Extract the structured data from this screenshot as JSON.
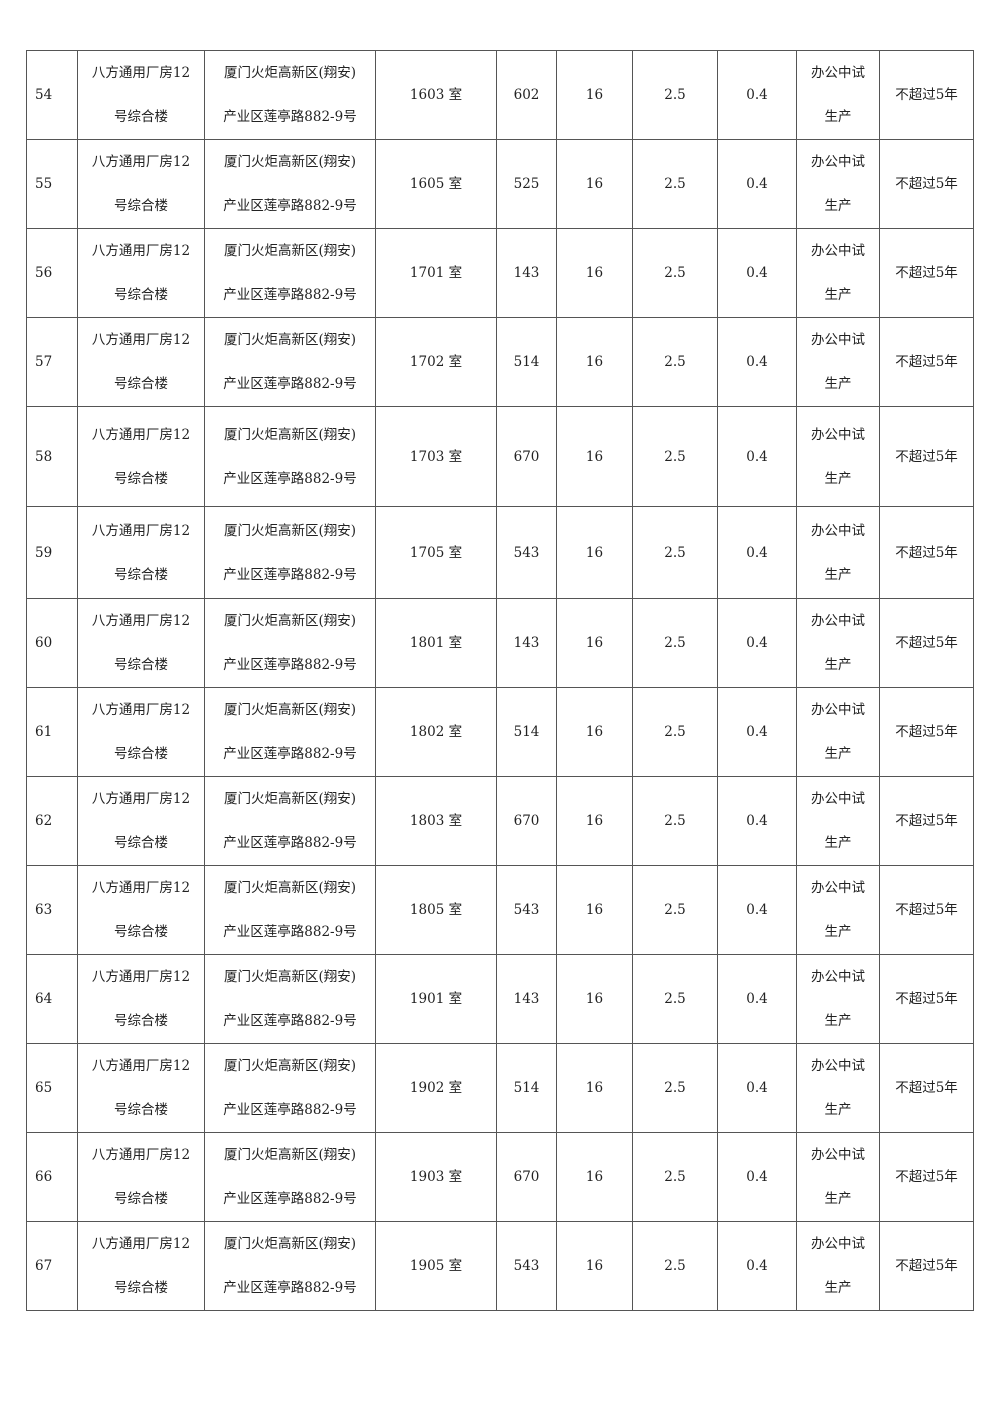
{
  "rows": [
    {
      "no": "54",
      "building": [
        "八方通用厂房12",
        "号综合楼"
      ],
      "address": [
        "厦门火炬高新区(翔安)",
        "产业区莲亭路882-9号"
      ],
      "room": "1603 室",
      "area": "602",
      "c6": "16",
      "c7": "2.5",
      "c8": "0.4",
      "use": [
        "办公中试",
        "生产"
      ],
      "term": "不超过5年"
    },
    {
      "no": "55",
      "building": [
        "八方通用厂房12",
        "号综合楼"
      ],
      "address": [
        "厦门火炬高新区(翔安)",
        "产业区莲亭路882-9号"
      ],
      "room": "1605 室",
      "area": "525",
      "c6": "16",
      "c7": "2.5",
      "c8": "0.4",
      "use": [
        "办公中试",
        "生产"
      ],
      "term": "不超过5年"
    },
    {
      "no": "56",
      "building": [
        "八方通用厂房12",
        "号综合楼"
      ],
      "address": [
        "厦门火炬高新区(翔安)",
        "产业区莲亭路882-9号"
      ],
      "room": "1701 室",
      "area": "143",
      "c6": "16",
      "c7": "2.5",
      "c8": "0.4",
      "use": [
        "办公中试",
        "生产"
      ],
      "term": "不超过5年"
    },
    {
      "no": "57",
      "building": [
        "八方通用厂房12",
        "号综合楼"
      ],
      "address": [
        "厦门火炬高新区(翔安)",
        "产业区莲亭路882-9号"
      ],
      "room": "1702 室",
      "area": "514",
      "c6": "16",
      "c7": "2.5",
      "c8": "0.4",
      "use": [
        "办公中试",
        "生产"
      ],
      "term": "不超过5年"
    },
    {
      "no": "58",
      "building": [
        "八方通用厂房12",
        "号综合楼"
      ],
      "address": [
        "厦门火炬高新区(翔安)",
        "产业区莲亭路882-9号"
      ],
      "room": "1703 室",
      "area": "670",
      "c6": "16",
      "c7": "2.5",
      "c8": "0.4",
      "use": [
        "办公中试",
        "生产"
      ],
      "term": "不超过5年"
    },
    {
      "no": "59",
      "building": [
        "八方通用厂房12",
        "号综合楼"
      ],
      "address": [
        "厦门火炬高新区(翔安)",
        "产业区莲亭路882-9号"
      ],
      "room": "1705 室",
      "area": "543",
      "c6": "16",
      "c7": "2.5",
      "c8": "0.4",
      "use": [
        "办公中试",
        "生产"
      ],
      "term": "不超过5年"
    },
    {
      "no": "60",
      "building": [
        "八方通用厂房12",
        "号综合楼"
      ],
      "address": [
        "厦门火炬高新区(翔安)",
        "产业区莲亭路882-9号"
      ],
      "room": "1801 室",
      "area": "143",
      "c6": "16",
      "c7": "2.5",
      "c8": "0.4",
      "use": [
        "办公中试",
        "生产"
      ],
      "term": "不超过5年"
    },
    {
      "no": "61",
      "building": [
        "八方通用厂房12",
        "号综合楼"
      ],
      "address": [
        "厦门火炬高新区(翔安)",
        "产业区莲亭路882-9号"
      ],
      "room": "1802 室",
      "area": "514",
      "c6": "16",
      "c7": "2.5",
      "c8": "0.4",
      "use": [
        "办公中试",
        "生产"
      ],
      "term": "不超过5年"
    },
    {
      "no": "62",
      "building": [
        "八方通用厂房12",
        "号综合楼"
      ],
      "address": [
        "厦门火炬高新区(翔安)",
        "产业区莲亭路882-9号"
      ],
      "room": "1803 室",
      "area": "670",
      "c6": "16",
      "c7": "2.5",
      "c8": "0.4",
      "use": [
        "办公中试",
        "生产"
      ],
      "term": "不超过5年"
    },
    {
      "no": "63",
      "building": [
        "八方通用厂房12",
        "号综合楼"
      ],
      "address": [
        "厦门火炬高新区(翔安)",
        "产业区莲亭路882-9号"
      ],
      "room": "1805 室",
      "area": "543",
      "c6": "16",
      "c7": "2.5",
      "c8": "0.4",
      "use": [
        "办公中试",
        "生产"
      ],
      "term": "不超过5年"
    },
    {
      "no": "64",
      "building": [
        "八方通用厂房12",
        "号综合楼"
      ],
      "address": [
        "厦门火炬高新区(翔安)",
        "产业区莲亭路882-9号"
      ],
      "room": "1901 室",
      "area": "143",
      "c6": "16",
      "c7": "2.5",
      "c8": "0.4",
      "use": [
        "办公中试",
        "生产"
      ],
      "term": "不超过5年"
    },
    {
      "no": "65",
      "building": [
        "八方通用厂房12",
        "号综合楼"
      ],
      "address": [
        "厦门火炬高新区(翔安)",
        "产业区莲亭路882-9号"
      ],
      "room": "1902 室",
      "area": "514",
      "c6": "16",
      "c7": "2.5",
      "c8": "0.4",
      "use": [
        "办公中试",
        "生产"
      ],
      "term": "不超过5年"
    },
    {
      "no": "66",
      "building": [
        "八方通用厂房12",
        "号综合楼"
      ],
      "address": [
        "厦门火炬高新区(翔安)",
        "产业区莲亭路882-9号"
      ],
      "room": "1903 室",
      "area": "670",
      "c6": "16",
      "c7": "2.5",
      "c8": "0.4",
      "use": [
        "办公中试",
        "生产"
      ],
      "term": "不超过5年"
    },
    {
      "no": "67",
      "building": [
        "八方通用厂房12",
        "号综合楼"
      ],
      "address": [
        "厦门火炬高新区(翔安)",
        "产业区莲亭路882-9号"
      ],
      "room": "1905 室",
      "area": "543",
      "c6": "16",
      "c7": "2.5",
      "c8": "0.4",
      "use": [
        "办公中试",
        "生产"
      ],
      "term": "不超过5年"
    }
  ]
}
